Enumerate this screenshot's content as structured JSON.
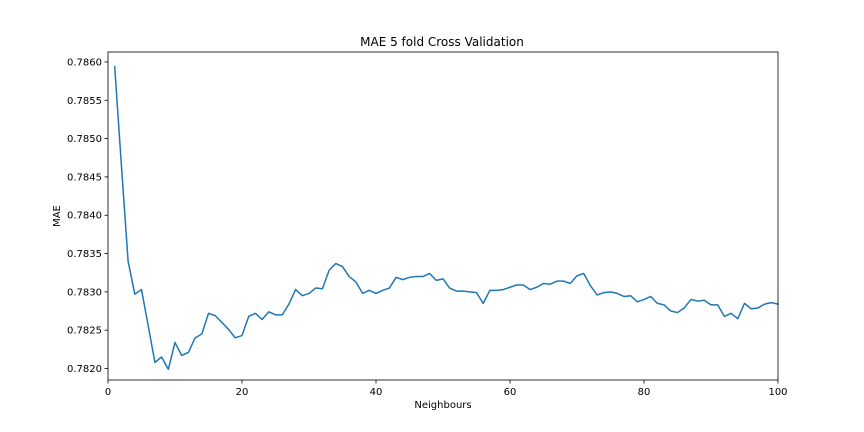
{
  "chart_data": {
    "type": "line",
    "title": "MAE 5 fold Cross Validation",
    "xlabel": "Neighbours",
    "ylabel": "MAE",
    "xlim": [
      0,
      100
    ],
    "ylim": [
      0.78185,
      0.78613
    ],
    "x_ticks": [
      0,
      20,
      40,
      60,
      80,
      100
    ],
    "x_tick_labels": [
      "0",
      "20",
      "40",
      "60",
      "80",
      "100"
    ],
    "y_ticks": [
      0.782,
      0.7825,
      0.783,
      0.7835,
      0.784,
      0.7845,
      0.785,
      0.7855,
      0.786
    ],
    "y_tick_labels": [
      "0.7820",
      "0.7825",
      "0.7830",
      "0.7835",
      "0.7840",
      "0.7845",
      "0.7850",
      "0.7855",
      "0.7860"
    ],
    "grid": false,
    "series": [
      {
        "color": "#1f77b4",
        "x": [
          1,
          2,
          3,
          4,
          5,
          6,
          7,
          8,
          9,
          10,
          11,
          12,
          13,
          14,
          15,
          16,
          17,
          18,
          19,
          20,
          21,
          22,
          23,
          24,
          25,
          26,
          27,
          28,
          29,
          30,
          31,
          32,
          33,
          34,
          35,
          36,
          37,
          38,
          39,
          40,
          41,
          42,
          43,
          44,
          45,
          46,
          47,
          48,
          49,
          50,
          51,
          52,
          53,
          54,
          55,
          56,
          57,
          58,
          59,
          60,
          61,
          62,
          63,
          64,
          65,
          66,
          67,
          68,
          69,
          70,
          71,
          72,
          73,
          74,
          75,
          76,
          77,
          78,
          79,
          80,
          81,
          82,
          83,
          84,
          85,
          86,
          87,
          88,
          89,
          90,
          91,
          92,
          93,
          94,
          95,
          96,
          97,
          98,
          99,
          100
        ],
        "values": [
          0.78594,
          0.78465,
          0.7834,
          0.78297,
          0.78303,
          0.78256,
          0.78208,
          0.78215,
          0.78199,
          0.78234,
          0.78217,
          0.78221,
          0.7824,
          0.78245,
          0.78272,
          0.78269,
          0.7826,
          0.78251,
          0.7824,
          0.78243,
          0.78268,
          0.78272,
          0.78264,
          0.78274,
          0.7827,
          0.7827,
          0.78284,
          0.78303,
          0.78295,
          0.78298,
          0.78305,
          0.78304,
          0.78328,
          0.78337,
          0.78333,
          0.7832,
          0.78313,
          0.78298,
          0.78302,
          0.78298,
          0.78302,
          0.78305,
          0.78319,
          0.78316,
          0.78319,
          0.7832,
          0.7832,
          0.78324,
          0.78315,
          0.78317,
          0.78305,
          0.78301,
          0.78301,
          0.783,
          0.78299,
          0.78285,
          0.78302,
          0.78302,
          0.78303,
          0.78306,
          0.78309,
          0.78309,
          0.78303,
          0.78306,
          0.78311,
          0.7831,
          0.78314,
          0.78314,
          0.78311,
          0.78321,
          0.78324,
          0.78308,
          0.78296,
          0.78299,
          0.783,
          0.78298,
          0.78294,
          0.78295,
          0.78287,
          0.7829,
          0.78294,
          0.78285,
          0.78283,
          0.78275,
          0.78273,
          0.78279,
          0.7829,
          0.78288,
          0.78289,
          0.78283,
          0.78283,
          0.78268,
          0.78272,
          0.78265,
          0.78285,
          0.78278,
          0.78279,
          0.78284,
          0.78286,
          0.78284
        ]
      }
    ]
  }
}
